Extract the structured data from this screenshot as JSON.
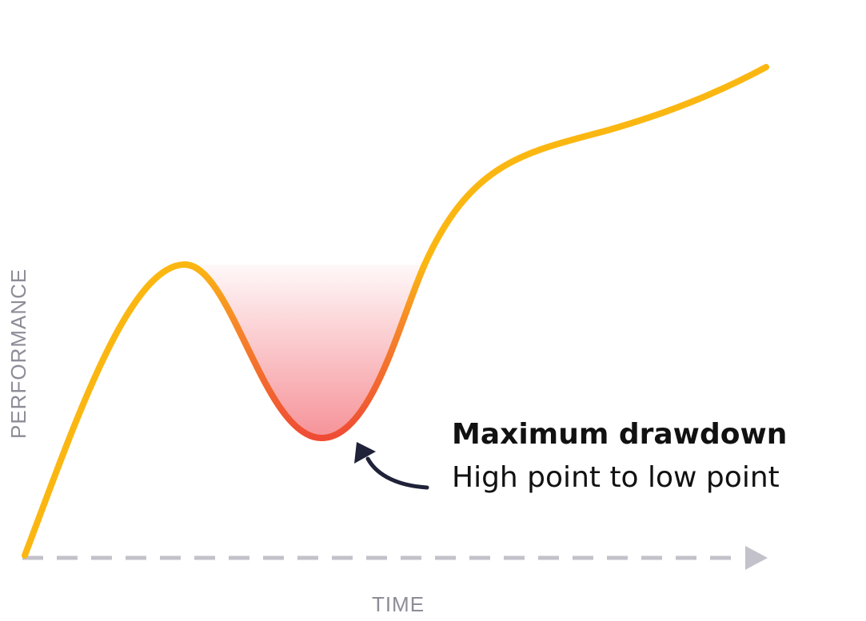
{
  "axes": {
    "y_label": "PERFORMANCE",
    "x_label": "TIME"
  },
  "annotation": {
    "title": "Maximum drawdown",
    "subtitle": "High point to low point"
  },
  "colors": {
    "curve_main": "#fbb711",
    "curve_drawdown": "#ef4b36",
    "fill_drawdown": "#f0505a",
    "axis": "#c3c2cb",
    "axis_label": "#8d8c97",
    "arrow": "#1f2238",
    "text": "#111111"
  }
}
